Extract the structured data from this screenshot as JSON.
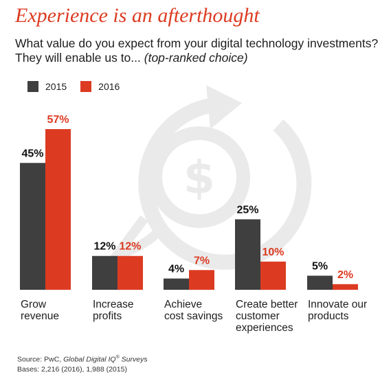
{
  "title": "Experience is an afterthought",
  "question": {
    "main": "What value do you expect from your digital technology investments? They will enable us to...",
    "qualifier": "(top-ranked choice)"
  },
  "colors": {
    "series_2015": "#3f3f3f",
    "series_2016": "#dc3b22",
    "title": "#dc3b22",
    "watermark": "#eaeaea"
  },
  "watermark_icon": "circular-dollar-arrow-icon",
  "chart_data": {
    "type": "bar",
    "categories": [
      [
        "Grow",
        "revenue"
      ],
      [
        "Increase",
        "profits"
      ],
      [
        "Achieve",
        "cost savings"
      ],
      [
        "Create better",
        "customer",
        "experiences"
      ],
      [
        "Innovate our",
        "products"
      ]
    ],
    "series": [
      {
        "name": "2015",
        "values": [
          45,
          12,
          4,
          25,
          5
        ],
        "labels": [
          "45%",
          "12%",
          "4%",
          "25%",
          "5%"
        ]
      },
      {
        "name": "2016",
        "values": [
          57,
          12,
          7,
          10,
          2
        ],
        "labels": [
          "57%",
          "12%",
          "7%",
          "10%",
          "2%"
        ]
      }
    ],
    "ylim": [
      0,
      60
    ],
    "grid": false,
    "legend_position": "top-left"
  },
  "footer": {
    "source_prefix": "Source: PwC, ",
    "source_title": "Global Digital IQ",
    "source_mark": "®",
    "source_suffix": " Surveys",
    "bases": "Bases: 2,216 (2016), 1,988 (2015)"
  }
}
